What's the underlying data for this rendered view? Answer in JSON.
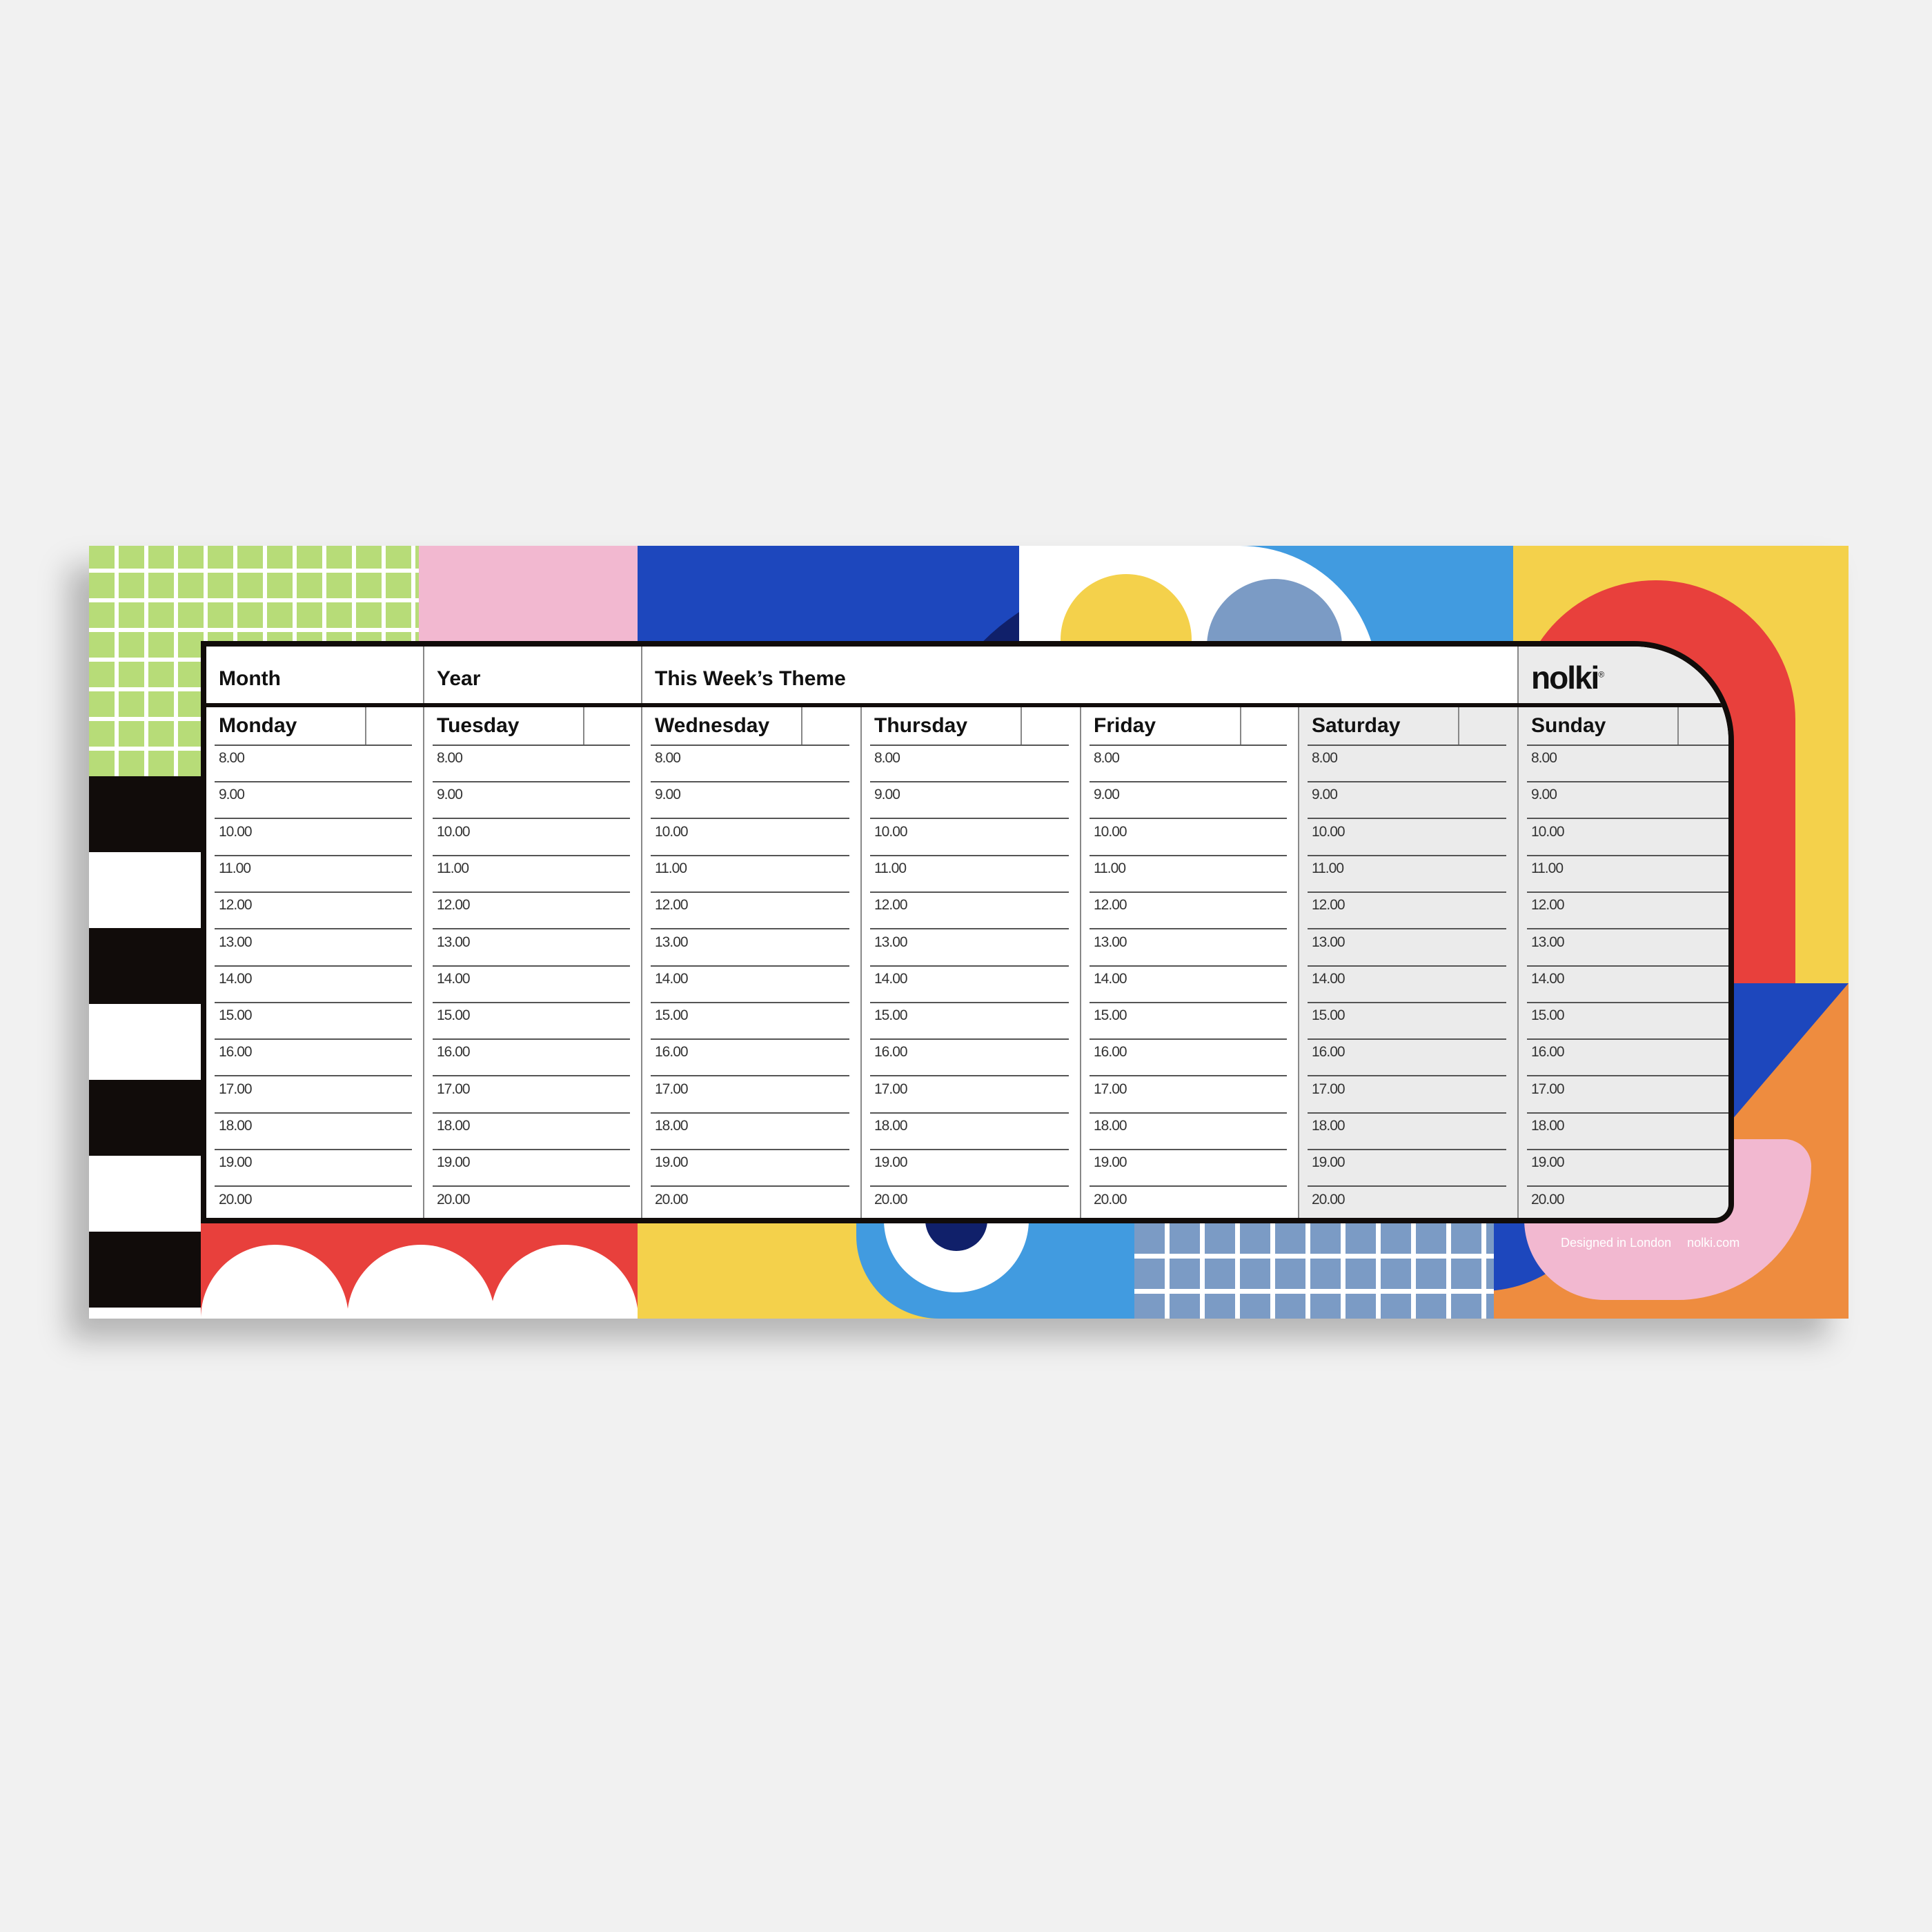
{
  "header": {
    "month_label": "Month",
    "year_label": "Year",
    "theme_label": "This Week’s Theme",
    "brand": "nolki",
    "brand_mark": "®"
  },
  "days": [
    "Monday",
    "Tuesday",
    "Wednesday",
    "Thursday",
    "Friday",
    "Saturday",
    "Sunday"
  ],
  "weekend": [
    "Saturday",
    "Sunday"
  ],
  "times": [
    "8.00",
    "9.00",
    "10.00",
    "11.00",
    "12.00",
    "13.00",
    "14.00",
    "15.00",
    "16.00",
    "17.00",
    "18.00",
    "19.00",
    "20.00"
  ],
  "footer": {
    "designed": "Designed in London",
    "site": "nolki.com"
  },
  "colors": {
    "green": "#b7dc78",
    "pink": "#f2b8d0",
    "blue": "#1d47bd",
    "navy": "#10206a",
    "light_blue": "#419be0",
    "yellow": "#f4d14b",
    "red": "#e8403c",
    "orange": "#ee8c3f",
    "grey_blue": "#7b9bc5",
    "black": "#110c0a"
  }
}
